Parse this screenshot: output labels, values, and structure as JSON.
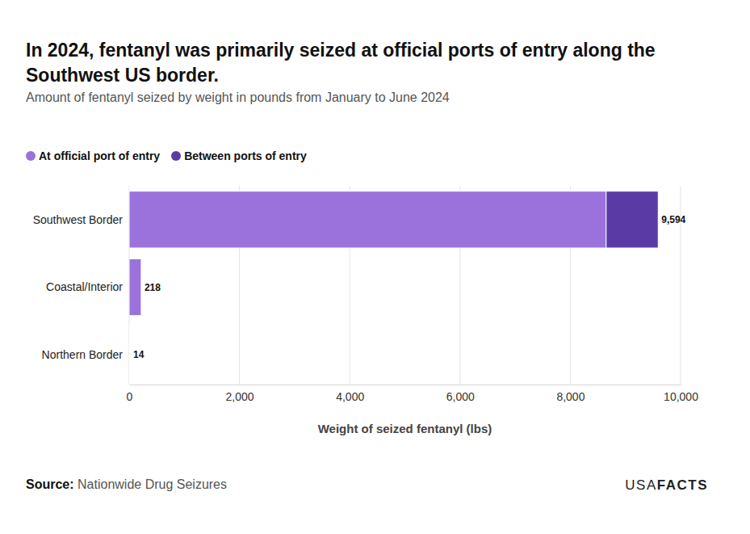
{
  "chart_data": {
    "type": "bar",
    "orientation": "horizontal",
    "stacked": true,
    "title": "In 2024, fentanyl was primarily seized at official ports of entry along the Southwest US border.",
    "subtitle": "Amount of fentanyl seized by weight in pounds from January to June 2024",
    "x_label": "Weight of seized fentanyl (lbs)",
    "categories": [
      "Southwest Border",
      "Coastal/Interior",
      "Northern Border"
    ],
    "series": [
      {
        "name": "At official port of entry",
        "color": "#9b72db",
        "values": [
          8650,
          218,
          14
        ]
      },
      {
        "name": "Between ports of entry",
        "color": "#5a3ba6",
        "values": [
          944,
          0,
          0
        ]
      }
    ],
    "totals": [
      9594,
      218,
      14
    ],
    "total_labels": [
      "9,594",
      "218",
      "14"
    ],
    "xlim": [
      0,
      10000
    ],
    "xticks": [
      0,
      {
        "value": 2000,
        "label": "2,000"
      },
      {
        "value": 4000,
        "label": "4,000"
      },
      {
        "value": 6000,
        "label": "6,000"
      },
      {
        "value": 8000,
        "label": "8,000"
      },
      {
        "value": 10000,
        "label": "10,000"
      }
    ],
    "grid": true,
    "legend": "top-left",
    "source_label": "Source:",
    "source": "Nationwide Drug Seizures",
    "logo_parts": [
      "USA",
      "FACTS"
    ]
  }
}
